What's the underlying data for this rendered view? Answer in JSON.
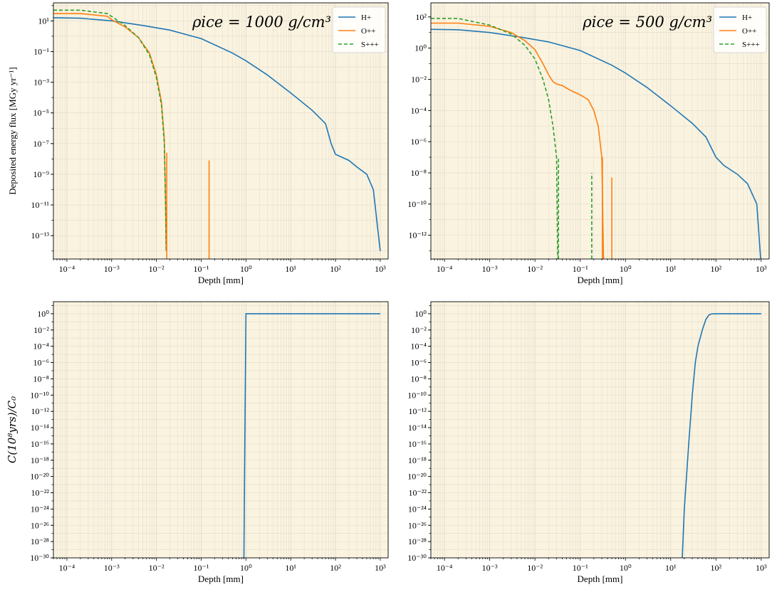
{
  "colors": {
    "plot_bg": "#faf3e0",
    "grid": "#e4dccb",
    "H": "#1f77b4",
    "O": "#ff7f0e",
    "S": "#2ca02c"
  },
  "chart_data": [
    {
      "type": "line",
      "panel": "top-left",
      "xlabel": "Depth [mm]",
      "ylabel": "Deposited energy flux [MGy yr⁻¹]",
      "xscale": "log",
      "yscale": "log",
      "xlim": [
        5e-05,
        1500
      ],
      "ylim": [
        3e-15,
        150
      ],
      "x_ticks": [
        -4,
        -3,
        -2,
        -1,
        0,
        1,
        2,
        3
      ],
      "y_ticks": [
        1,
        -1,
        -3,
        -5,
        -7,
        -9,
        -11,
        -13
      ],
      "annotation": "ρice = 1000 g/cm³",
      "legend": {
        "position": "top-right",
        "entries": [
          "H+",
          "O++",
          "S+++"
        ]
      },
      "series": [
        {
          "name": "H+",
          "x": [
            5e-05,
            0.0002,
            0.001,
            0.005,
            0.02,
            0.1,
            0.5,
            1,
            3,
            10,
            30,
            60,
            80,
            100,
            200,
            300,
            500,
            700,
            1000
          ],
          "y": [
            16,
            15,
            10,
            5,
            2.5,
            0.7,
            0.08,
            0.025,
            0.003,
            0.0002,
            1.5e-05,
            2e-06,
            1e-07,
            2e-08,
            8e-09,
            3e-09,
            1e-09,
            1e-10,
            1e-14
          ]
        },
        {
          "name": "O++",
          "x": [
            5e-05,
            0.0002,
            0.0008,
            0.001,
            0.002,
            0.004,
            0.007,
            0.01,
            0.013,
            0.015,
            0.016,
            0.0165
          ],
          "y": [
            30,
            30,
            20,
            12,
            4,
            0.8,
            0.08,
            0.003,
            5e-05,
            2e-07,
            1e-11,
            1e-14
          ]
        },
        {
          "name": "S+++",
          "x": [
            5e-05,
            0.0002,
            0.0008,
            0.002,
            0.004,
            0.007,
            0.01,
            0.013,
            0.015,
            0.016,
            0.0165
          ],
          "y": [
            50,
            50,
            30,
            5,
            0.8,
            0.06,
            0.002,
            3e-05,
            1e-07,
            1e-11,
            1e-14
          ]
        }
      ],
      "spikes": [
        {
          "series": "O++",
          "x": 0.017,
          "y_top": 2.5e-08
        },
        {
          "series": "O++",
          "x": 0.15,
          "y_top": 8e-09
        }
      ]
    },
    {
      "type": "line",
      "panel": "top-right",
      "xlabel": "Depth [mm]",
      "ylabel": "",
      "xscale": "log",
      "yscale": "log",
      "xlim": [
        5e-05,
        1500
      ],
      "ylim": [
        3e-14,
        800
      ],
      "x_ticks": [
        -4,
        -3,
        -2,
        -1,
        0,
        1,
        2,
        3
      ],
      "y_ticks": [
        2,
        0,
        -2,
        -4,
        -6,
        -8,
        -10,
        -12
      ],
      "annotation": "ρice = 500 g/cm³",
      "legend": {
        "position": "top-right",
        "entries": [
          "H+",
          "O++",
          "S+++"
        ]
      },
      "series": [
        {
          "name": "H+",
          "x": [
            5e-05,
            0.0002,
            0.001,
            0.005,
            0.02,
            0.1,
            0.5,
            1,
            3,
            10,
            30,
            60,
            100,
            150,
            300,
            500,
            800,
            1000
          ],
          "y": [
            16,
            15,
            10,
            5,
            2.5,
            0.7,
            0.08,
            0.025,
            0.003,
            0.0002,
            1.5e-05,
            2e-06,
            1e-07,
            3e-08,
            8e-09,
            2e-09,
            1e-10,
            1e-14
          ]
        },
        {
          "name": "O++",
          "x": [
            5e-05,
            0.0002,
            0.001,
            0.003,
            0.006,
            0.01,
            0.015,
            0.02,
            0.025,
            0.03,
            0.04,
            0.06,
            0.1,
            0.15,
            0.2,
            0.25,
            0.3,
            0.33
          ],
          "y": [
            40,
            40,
            25,
            10,
            3,
            0.8,
            0.1,
            0.02,
            0.007,
            0.005,
            0.004,
            0.002,
            0.001,
            0.0005,
            0.0001,
            1e-05,
            1e-07,
            1e-14
          ]
        },
        {
          "name": "S+++",
          "x": [
            5e-05,
            0.0002,
            0.001,
            0.003,
            0.006,
            0.01,
            0.015,
            0.02,
            0.025,
            0.03,
            0.032
          ],
          "y": [
            80,
            80,
            30,
            8,
            1.5,
            0.2,
            0.01,
            0.0005,
            1e-05,
            1e-07,
            1e-14
          ]
        }
      ],
      "spikes": [
        {
          "series": "S+++",
          "x": 0.033,
          "y_top": 8e-08,
          "dashed": true
        },
        {
          "series": "S+++",
          "x": 0.18,
          "y_top": 1e-08,
          "dashed": true
        },
        {
          "series": "O++",
          "x": 0.31,
          "y_top": 1e-07
        },
        {
          "series": "O++",
          "x": 0.5,
          "y_top": 5e-09
        }
      ]
    },
    {
      "type": "line",
      "panel": "bottom-left",
      "xlabel": "Depth [mm]",
      "ylabel": "C(10⁸yrs)/C₀",
      "xscale": "log",
      "yscale": "log",
      "xlim": [
        5e-05,
        1500
      ],
      "ylim": [
        1e-30,
        30
      ],
      "x_ticks": [
        -4,
        -3,
        -2,
        -1,
        0,
        1,
        2,
        3
      ],
      "y_ticks": [
        0,
        -2,
        -4,
        -6,
        -8,
        -10,
        -12,
        -14,
        -16,
        -18,
        -20,
        -22,
        -24,
        -26,
        -28,
        -30
      ],
      "series": [
        {
          "name": "",
          "x": [
            0.9,
            0.93,
            1.0,
            1000
          ],
          "y": [
            1e-30,
            1e-20,
            1,
            1
          ]
        }
      ]
    },
    {
      "type": "line",
      "panel": "bottom-right",
      "xlabel": "Depth [mm]",
      "ylabel": "",
      "xscale": "log",
      "yscale": "log",
      "xlim": [
        5e-05,
        1500
      ],
      "ylim": [
        1e-30,
        30
      ],
      "x_ticks": [
        -4,
        -3,
        -2,
        -1,
        0,
        1,
        2,
        3
      ],
      "y_ticks": [
        0,
        -2,
        -4,
        -6,
        -8,
        -10,
        -12,
        -14,
        -16,
        -18,
        -20,
        -22,
        -24,
        -26,
        -28,
        -30
      ],
      "series": [
        {
          "name": "",
          "x": [
            18,
            20,
            25,
            30,
            35,
            40,
            50,
            60,
            70,
            80,
            100,
            1000
          ],
          "y": [
            1e-30,
            1e-24,
            1e-16,
            1e-10,
            1e-06,
            0.0001,
            0.01,
            0.2,
            0.7,
            0.95,
            1,
            1
          ]
        }
      ]
    }
  ]
}
